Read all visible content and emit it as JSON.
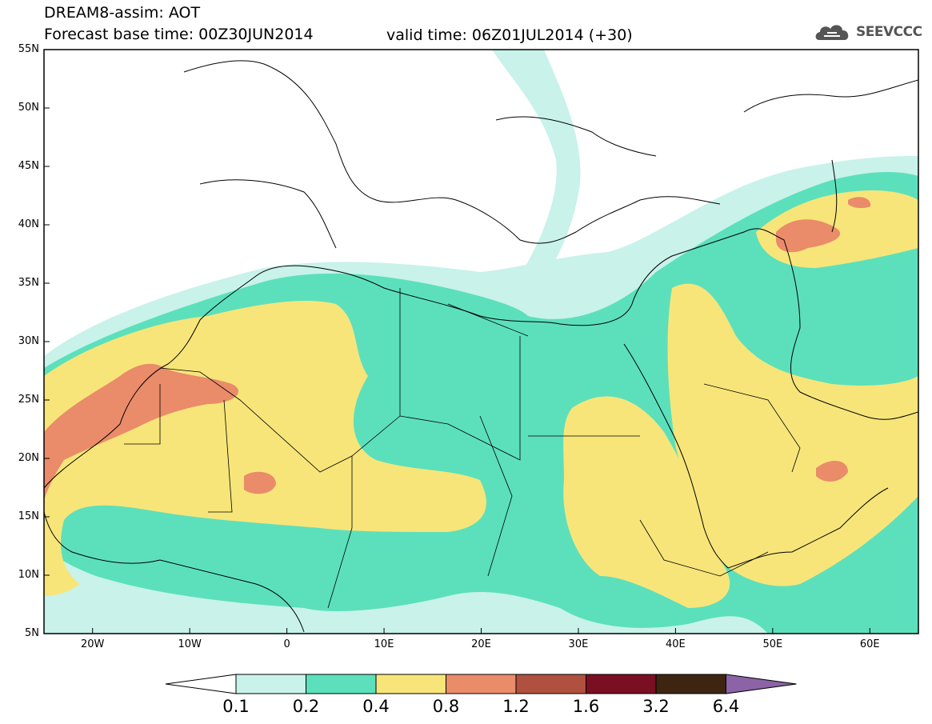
{
  "header": {
    "title_line1": "DREAM8-assim: AOT",
    "title_line2": "Forecast base time: 00Z30JUN2014",
    "valid_time": "valid time: 06Z01JUL2014 (+30)",
    "logo_text": "SEEVCCC",
    "logo_icon": "cloud-icon"
  },
  "map": {
    "variable": "AOT",
    "lat_labels": [
      "55N",
      "50N",
      "45N",
      "40N",
      "35N",
      "30N",
      "25N",
      "20N",
      "15N",
      "10N",
      "5N"
    ],
    "lon_labels": [
      "20W",
      "10W",
      "0",
      "10E",
      "20E",
      "30E",
      "40E",
      "50E",
      "60E"
    ],
    "extent": {
      "lon_min": -25,
      "lon_max": 65,
      "lat_min": 5,
      "lat_max": 55
    }
  },
  "colorbar": {
    "labels": [
      "0.1",
      "0.2",
      "0.4",
      "0.8",
      "1.2",
      "1.6",
      "3.2",
      "6.4"
    ],
    "colors": [
      "#c8f2ea",
      "#5ce0bc",
      "#f7e57a",
      "#ea8b6a",
      "#b0503e",
      "#7a0f24",
      "#3e2512",
      "#8b63a6"
    ]
  }
}
